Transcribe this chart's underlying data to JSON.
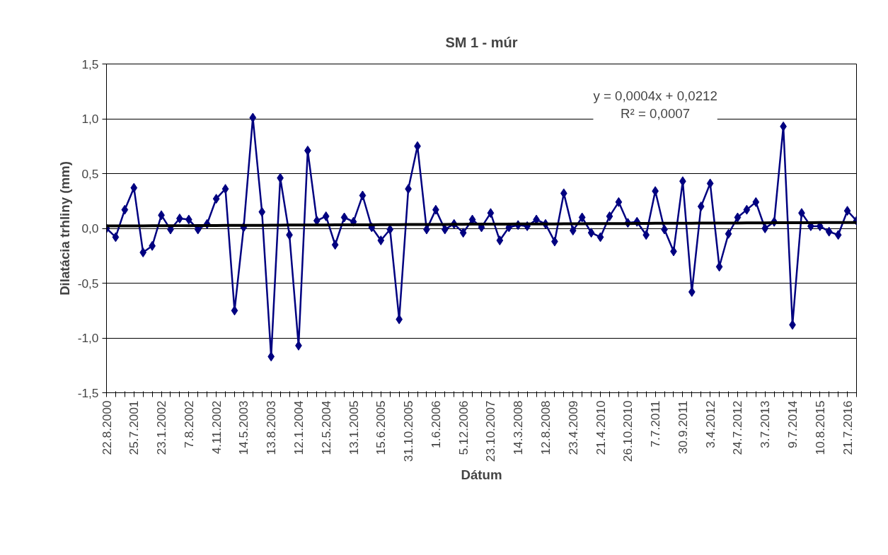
{
  "chart_data": {
    "type": "line",
    "title": "SM 1 - múr",
    "xlabel": "Dátum",
    "ylabel": "Dilatácia trhliny (mm)",
    "categories": [
      "22.8.2000",
      null,
      null,
      "25.7.2001",
      null,
      null,
      "23.1.2002",
      null,
      null,
      "7.8.2002",
      null,
      null,
      "4.11.2002",
      null,
      null,
      "14.5.2003",
      null,
      null,
      "13.8.2003",
      null,
      null,
      "12.1.2004",
      null,
      null,
      "12.5.2004",
      null,
      null,
      "13.1.2005",
      null,
      null,
      "15.6.2005",
      null,
      null,
      "31.10.2005",
      null,
      null,
      "1.6.2006",
      null,
      null,
      "5.12.2006",
      null,
      null,
      "23.10.2007",
      null,
      null,
      "14.3.2008",
      null,
      null,
      "12.8.2008",
      null,
      null,
      "23.4.2009",
      null,
      null,
      "21.4.2010",
      null,
      null,
      "26.10.2010",
      null,
      null,
      "7.7.2011",
      null,
      null,
      "30.9.2011",
      null,
      null,
      "3.4.2012",
      null,
      null,
      "24.7.2012",
      null,
      null,
      "3.7.2013",
      null,
      null,
      "9.7.2014",
      null,
      null,
      "10.8.2015",
      null,
      null,
      "21.7.2016",
      null
    ],
    "series": [
      {
        "color": "#000080",
        "marker": "diamond",
        "values": [
          0.0,
          -0.08,
          0.17,
          0.37,
          -0.22,
          -0.16,
          0.12,
          -0.01,
          0.09,
          0.08,
          -0.01,
          0.04,
          0.27,
          0.36,
          -0.75,
          0.01,
          1.01,
          0.15,
          -1.17,
          0.46,
          -0.06,
          -1.07,
          0.71,
          0.07,
          0.11,
          -0.15,
          0.1,
          0.06,
          0.3,
          0.01,
          -0.11,
          -0.01,
          -0.83,
          0.36,
          0.75,
          -0.01,
          0.17,
          -0.01,
          0.04,
          -0.04,
          0.08,
          0.01,
          0.14,
          -0.11,
          0.01,
          0.03,
          0.02,
          0.08,
          0.04,
          -0.12,
          0.32,
          -0.02,
          0.1,
          -0.04,
          -0.08,
          0.11,
          0.24,
          0.05,
          0.06,
          -0.06,
          0.34,
          -0.01,
          -0.21,
          0.43,
          -0.58,
          0.2,
          0.41,
          -0.35,
          -0.05,
          0.1,
          0.17,
          0.24,
          0.0,
          0.06,
          0.93,
          -0.88,
          0.14,
          0.02,
          0.02,
          -0.03,
          -0.06,
          0.16,
          0.07
        ]
      },
      {
        "color": "#000000",
        "marker": "none",
        "values": [
          0.022,
          0.022,
          0.022,
          0.023,
          0.023,
          0.024,
          0.024,
          0.024,
          0.025,
          0.025,
          0.026,
          0.026,
          0.026,
          0.027,
          0.027,
          0.028,
          0.028,
          0.028,
          0.029,
          0.029,
          0.03,
          0.03,
          0.03,
          0.031,
          0.031,
          0.032,
          0.032,
          0.032,
          0.033,
          0.033,
          0.034,
          0.034,
          0.034,
          0.035,
          0.035,
          0.036,
          0.036,
          0.036,
          0.037,
          0.037,
          0.038,
          0.038,
          0.038,
          0.039,
          0.039,
          0.04,
          0.04,
          0.04,
          0.041,
          0.041,
          0.042,
          0.042,
          0.042,
          0.043,
          0.043,
          0.044,
          0.044,
          0.044,
          0.045,
          0.045,
          0.046,
          0.046,
          0.046,
          0.047,
          0.047,
          0.048,
          0.048,
          0.048,
          0.049,
          0.049,
          0.05,
          0.05,
          0.05,
          0.051,
          0.051,
          0.052,
          0.052,
          0.052,
          0.053,
          0.053,
          0.054,
          0.054,
          0.054
        ]
      }
    ],
    "ylim": [
      -1.5,
      1.5
    ],
    "yticks": [
      {
        "value": -1.5,
        "label": "-1,5"
      },
      {
        "value": -1.0,
        "label": "-1,0"
      },
      {
        "value": -0.5,
        "label": "-0,5"
      },
      {
        "value": 0,
        "label": "0,0"
      },
      {
        "value": 0.5,
        "label": "0,5"
      },
      {
        "value": 1.0,
        "label": "1,0"
      },
      {
        "value": 1.5,
        "label": "1,5"
      }
    ],
    "grid": "y",
    "annotations": [
      "y = 0,0004x + 0,0212\nR² = 0,0007"
    ]
  }
}
